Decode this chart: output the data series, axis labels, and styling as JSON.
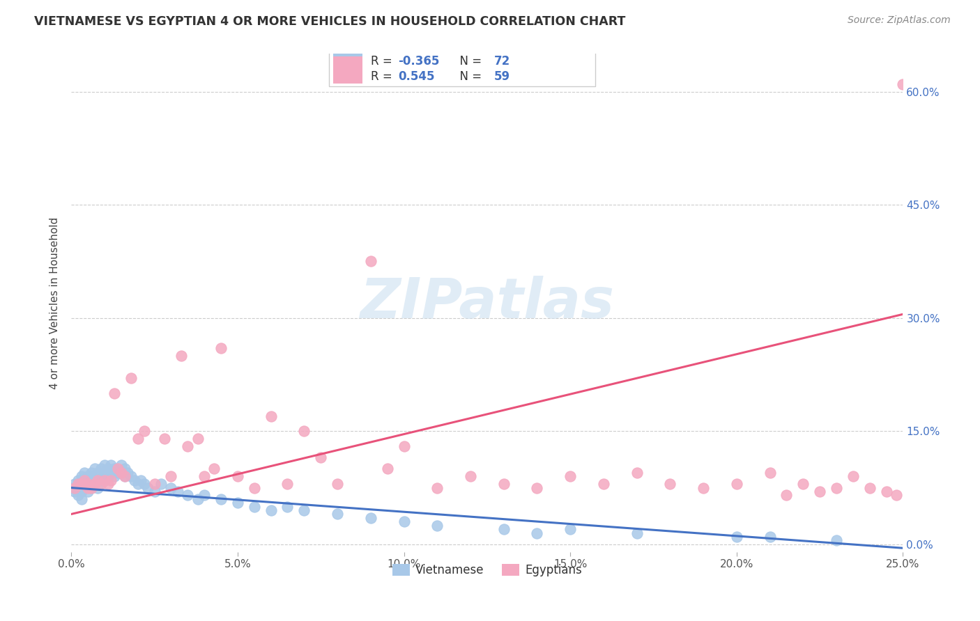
{
  "title": "VIETNAMESE VS EGYPTIAN 4 OR MORE VEHICLES IN HOUSEHOLD CORRELATION CHART",
  "source": "Source: ZipAtlas.com",
  "ylabel": "4 or more Vehicles in Household",
  "watermark": "ZIPatlas",
  "xlim": [
    0.0,
    0.25
  ],
  "ylim": [
    -0.01,
    0.65
  ],
  "xticks": [
    0.0,
    0.05,
    0.1,
    0.15,
    0.2,
    0.25
  ],
  "xtick_labels": [
    "0.0%",
    "5.0%",
    "10.0%",
    "15.0%",
    "20.0%",
    "25.0%"
  ],
  "ytick_positions": [
    0.0,
    0.15,
    0.3,
    0.45,
    0.6
  ],
  "right_ytick_labels": [
    "0.0%",
    "15.0%",
    "30.0%",
    "45.0%",
    "60.0%"
  ],
  "viet_R": -0.365,
  "viet_N": 72,
  "egypt_R": 0.545,
  "egypt_N": 59,
  "viet_color": "#a8c8e8",
  "egypt_color": "#f4a8c0",
  "viet_line_color": "#4472c4",
  "egypt_line_color": "#e8527a",
  "legend_labels": [
    "Vietnamese",
    "Egyptians"
  ],
  "viet_legend_text": "R = -0.365   N = 72",
  "egypt_legend_text": "R =  0.545   N = 59",
  "viet_x": [
    0.0,
    0.001,
    0.001,
    0.002,
    0.002,
    0.002,
    0.003,
    0.003,
    0.003,
    0.003,
    0.004,
    0.004,
    0.004,
    0.005,
    0.005,
    0.005,
    0.006,
    0.006,
    0.006,
    0.007,
    0.007,
    0.007,
    0.008,
    0.008,
    0.008,
    0.009,
    0.009,
    0.01,
    0.01,
    0.01,
    0.011,
    0.011,
    0.012,
    0.012,
    0.013,
    0.013,
    0.014,
    0.015,
    0.015,
    0.016,
    0.016,
    0.017,
    0.018,
    0.019,
    0.02,
    0.021,
    0.022,
    0.023,
    0.025,
    0.027,
    0.03,
    0.032,
    0.035,
    0.038,
    0.04,
    0.045,
    0.05,
    0.055,
    0.06,
    0.065,
    0.07,
    0.08,
    0.09,
    0.1,
    0.11,
    0.13,
    0.14,
    0.15,
    0.17,
    0.2,
    0.21,
    0.23
  ],
  "viet_y": [
    0.075,
    0.08,
    0.07,
    0.085,
    0.075,
    0.065,
    0.09,
    0.08,
    0.07,
    0.06,
    0.095,
    0.085,
    0.075,
    0.09,
    0.08,
    0.07,
    0.095,
    0.085,
    0.075,
    0.1,
    0.09,
    0.08,
    0.095,
    0.085,
    0.075,
    0.1,
    0.09,
    0.105,
    0.095,
    0.085,
    0.1,
    0.09,
    0.105,
    0.095,
    0.1,
    0.09,
    0.095,
    0.105,
    0.095,
    0.1,
    0.09,
    0.095,
    0.09,
    0.085,
    0.08,
    0.085,
    0.08,
    0.075,
    0.07,
    0.08,
    0.075,
    0.07,
    0.065,
    0.06,
    0.065,
    0.06,
    0.055,
    0.05,
    0.045,
    0.05,
    0.045,
    0.04,
    0.035,
    0.03,
    0.025,
    0.02,
    0.015,
    0.02,
    0.015,
    0.01,
    0.01,
    0.005
  ],
  "egypt_x": [
    0.001,
    0.002,
    0.003,
    0.004,
    0.005,
    0.005,
    0.006,
    0.007,
    0.008,
    0.009,
    0.01,
    0.011,
    0.012,
    0.013,
    0.014,
    0.015,
    0.016,
    0.018,
    0.02,
    0.022,
    0.025,
    0.028,
    0.03,
    0.033,
    0.035,
    0.038,
    0.04,
    0.043,
    0.045,
    0.05,
    0.055,
    0.06,
    0.065,
    0.07,
    0.075,
    0.08,
    0.09,
    0.095,
    0.1,
    0.11,
    0.12,
    0.13,
    0.14,
    0.15,
    0.16,
    0.17,
    0.18,
    0.19,
    0.2,
    0.21,
    0.215,
    0.22,
    0.225,
    0.23,
    0.235,
    0.24,
    0.245,
    0.248,
    0.25
  ],
  "egypt_y": [
    0.075,
    0.08,
    0.08,
    0.085,
    0.075,
    0.08,
    0.075,
    0.08,
    0.085,
    0.08,
    0.085,
    0.08,
    0.085,
    0.2,
    0.1,
    0.095,
    0.09,
    0.22,
    0.14,
    0.15,
    0.08,
    0.14,
    0.09,
    0.25,
    0.13,
    0.14,
    0.09,
    0.1,
    0.26,
    0.09,
    0.075,
    0.17,
    0.08,
    0.15,
    0.115,
    0.08,
    0.375,
    0.1,
    0.13,
    0.075,
    0.09,
    0.08,
    0.075,
    0.09,
    0.08,
    0.095,
    0.08,
    0.075,
    0.08,
    0.095,
    0.065,
    0.08,
    0.07,
    0.075,
    0.09,
    0.075,
    0.07,
    0.065,
    0.61
  ],
  "viet_line_x0": 0.0,
  "viet_line_y0": 0.075,
  "viet_line_x1": 0.25,
  "viet_line_y1": -0.005,
  "egypt_line_x0": 0.0,
  "egypt_line_y0": 0.04,
  "egypt_line_x1": 0.25,
  "egypt_line_y1": 0.305
}
